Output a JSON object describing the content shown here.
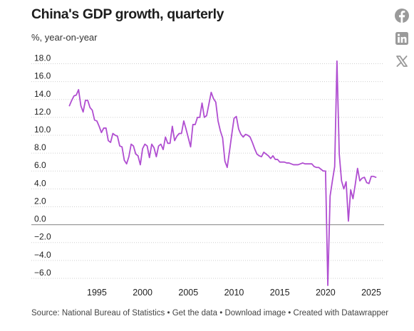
{
  "header": {
    "title": "China's GDP growth, quarterly",
    "subtitle": "%, year-on-year"
  },
  "share": {
    "icons": [
      "facebook-icon",
      "linkedin-icon",
      "x-icon"
    ],
    "color": "#999999"
  },
  "footer": {
    "source": "Source: National Bureau of Statistics",
    "get_data": "Get the data",
    "download": "Download image",
    "created": "Created with Datawrapper",
    "separator": " • "
  },
  "chart_data": {
    "type": "line",
    "title": "China's GDP growth, quarterly",
    "subtitle": "%, year-on-year",
    "xlabel": "",
    "ylabel": "",
    "xlim": [
      1991.5,
      2026.4
    ],
    "ylim": [
      -6.8,
      18.6
    ],
    "yticks": [
      18,
      16,
      14,
      12,
      10,
      8,
      6,
      4,
      2,
      0,
      -2,
      -4,
      -6
    ],
    "ytick_labels": [
      "18.0",
      "16.0",
      "14.0",
      "12.0",
      "10.0",
      "8.0",
      "6.0",
      "4.0",
      "2.0",
      "0.0",
      "−2.0",
      "−4.0",
      "−6.0"
    ],
    "xticks": [
      1995,
      2000,
      2005,
      2010,
      2015,
      2020,
      2025
    ],
    "xtick_labels": [
      "1995",
      "2000",
      "2005",
      "2010",
      "2015",
      "2020",
      "2025"
    ],
    "grid": "horizontal dotted",
    "line_color": "#b04ed1",
    "series": [
      {
        "points": [
          [
            1992.0,
            13.3
          ],
          [
            1992.25,
            13.9
          ],
          [
            1992.5,
            14.4
          ],
          [
            1992.75,
            14.5
          ],
          [
            1993.0,
            15.1
          ],
          [
            1993.25,
            13.3
          ],
          [
            1993.5,
            12.6
          ],
          [
            1993.75,
            13.9
          ],
          [
            1994.0,
            13.9
          ],
          [
            1994.25,
            13.1
          ],
          [
            1994.5,
            12.8
          ],
          [
            1994.75,
            11.7
          ],
          [
            1995.0,
            11.6
          ],
          [
            1995.25,
            11.0
          ],
          [
            1995.5,
            10.3
          ],
          [
            1995.75,
            10.8
          ],
          [
            1996.0,
            10.8
          ],
          [
            1996.25,
            9.4
          ],
          [
            1996.5,
            9.2
          ],
          [
            1996.75,
            10.2
          ],
          [
            1997.0,
            10.0
          ],
          [
            1997.25,
            9.9
          ],
          [
            1997.5,
            8.8
          ],
          [
            1997.75,
            8.7
          ],
          [
            1998.0,
            7.2
          ],
          [
            1998.25,
            6.8
          ],
          [
            1998.5,
            7.6
          ],
          [
            1998.75,
            9.0
          ],
          [
            1999.0,
            8.8
          ],
          [
            1999.25,
            7.9
          ],
          [
            1999.5,
            7.7
          ],
          [
            1999.75,
            6.7
          ],
          [
            2000.0,
            8.5
          ],
          [
            2000.25,
            9.0
          ],
          [
            2000.5,
            8.8
          ],
          [
            2000.75,
            7.5
          ],
          [
            2001.0,
            9.0
          ],
          [
            2001.25,
            8.6
          ],
          [
            2001.5,
            7.6
          ],
          [
            2001.75,
            8.8
          ],
          [
            2002.0,
            9.0
          ],
          [
            2002.25,
            8.4
          ],
          [
            2002.5,
            9.8
          ],
          [
            2002.75,
            9.1
          ],
          [
            2003.0,
            9.1
          ],
          [
            2003.25,
            11.0
          ],
          [
            2003.5,
            9.4
          ],
          [
            2003.75,
            9.9
          ],
          [
            2004.0,
            10.2
          ],
          [
            2004.25,
            10.2
          ],
          [
            2004.5,
            11.6
          ],
          [
            2004.75,
            10.7
          ],
          [
            2005.0,
            9.7
          ],
          [
            2005.25,
            8.7
          ],
          [
            2005.5,
            11.2
          ],
          [
            2005.75,
            11.2
          ],
          [
            2006.0,
            12.0
          ],
          [
            2006.25,
            12.0
          ],
          [
            2006.5,
            13.6
          ],
          [
            2006.75,
            12.0
          ],
          [
            2007.0,
            12.2
          ],
          [
            2007.25,
            13.5
          ],
          [
            2007.5,
            14.8
          ],
          [
            2007.75,
            14.1
          ],
          [
            2008.0,
            13.7
          ],
          [
            2008.25,
            11.6
          ],
          [
            2008.5,
            10.5
          ],
          [
            2008.75,
            9.7
          ],
          [
            2009.0,
            7.1
          ],
          [
            2009.25,
            6.4
          ],
          [
            2009.5,
            8.2
          ],
          [
            2009.75,
            10.1
          ],
          [
            2010.0,
            11.9
          ],
          [
            2010.25,
            12.1
          ],
          [
            2010.5,
            10.7
          ],
          [
            2010.75,
            10.1
          ],
          [
            2011.0,
            9.8
          ],
          [
            2011.25,
            10.1
          ],
          [
            2011.5,
            10.0
          ],
          [
            2011.75,
            9.8
          ],
          [
            2012.0,
            9.2
          ],
          [
            2012.25,
            8.5
          ],
          [
            2012.5,
            7.9
          ],
          [
            2012.75,
            7.7
          ],
          [
            2013.0,
            7.6
          ],
          [
            2013.25,
            8.1
          ],
          [
            2013.5,
            7.9
          ],
          [
            2013.75,
            7.7
          ],
          [
            2014.0,
            7.4
          ],
          [
            2014.25,
            7.7
          ],
          [
            2014.5,
            7.3
          ],
          [
            2014.75,
            7.3
          ],
          [
            2015.0,
            7.0
          ],
          [
            2015.25,
            7.0
          ],
          [
            2015.5,
            7.0
          ],
          [
            2015.75,
            6.9
          ],
          [
            2016.0,
            6.9
          ],
          [
            2016.25,
            6.8
          ],
          [
            2016.5,
            6.7
          ],
          [
            2016.75,
            6.7
          ],
          [
            2017.0,
            6.7
          ],
          [
            2017.25,
            6.8
          ],
          [
            2017.5,
            6.9
          ],
          [
            2017.75,
            6.8
          ],
          [
            2018.0,
            6.8
          ],
          [
            2018.25,
            6.8
          ],
          [
            2018.5,
            6.8
          ],
          [
            2018.75,
            6.5
          ],
          [
            2019.0,
            6.4
          ],
          [
            2019.25,
            6.4
          ],
          [
            2019.5,
            6.2
          ],
          [
            2019.75,
            6.0
          ],
          [
            2020.0,
            6.0
          ],
          [
            2020.25,
            -6.8
          ],
          [
            2020.5,
            3.2
          ],
          [
            2020.75,
            4.9
          ],
          [
            2021.0,
            6.5
          ],
          [
            2021.25,
            18.3
          ],
          [
            2021.5,
            7.9
          ],
          [
            2021.75,
            4.9
          ],
          [
            2022.0,
            4.0
          ],
          [
            2022.25,
            4.8
          ],
          [
            2022.5,
            0.4
          ],
          [
            2022.75,
            3.9
          ],
          [
            2023.0,
            2.9
          ],
          [
            2023.25,
            4.5
          ],
          [
            2023.5,
            6.3
          ],
          [
            2023.75,
            4.9
          ],
          [
            2024.0,
            5.2
          ],
          [
            2024.25,
            5.3
          ],
          [
            2024.5,
            4.7
          ],
          [
            2024.75,
            4.6
          ],
          [
            2025.0,
            5.4
          ],
          [
            2025.25,
            5.4
          ],
          [
            2025.5,
            5.3
          ]
        ]
      }
    ]
  }
}
